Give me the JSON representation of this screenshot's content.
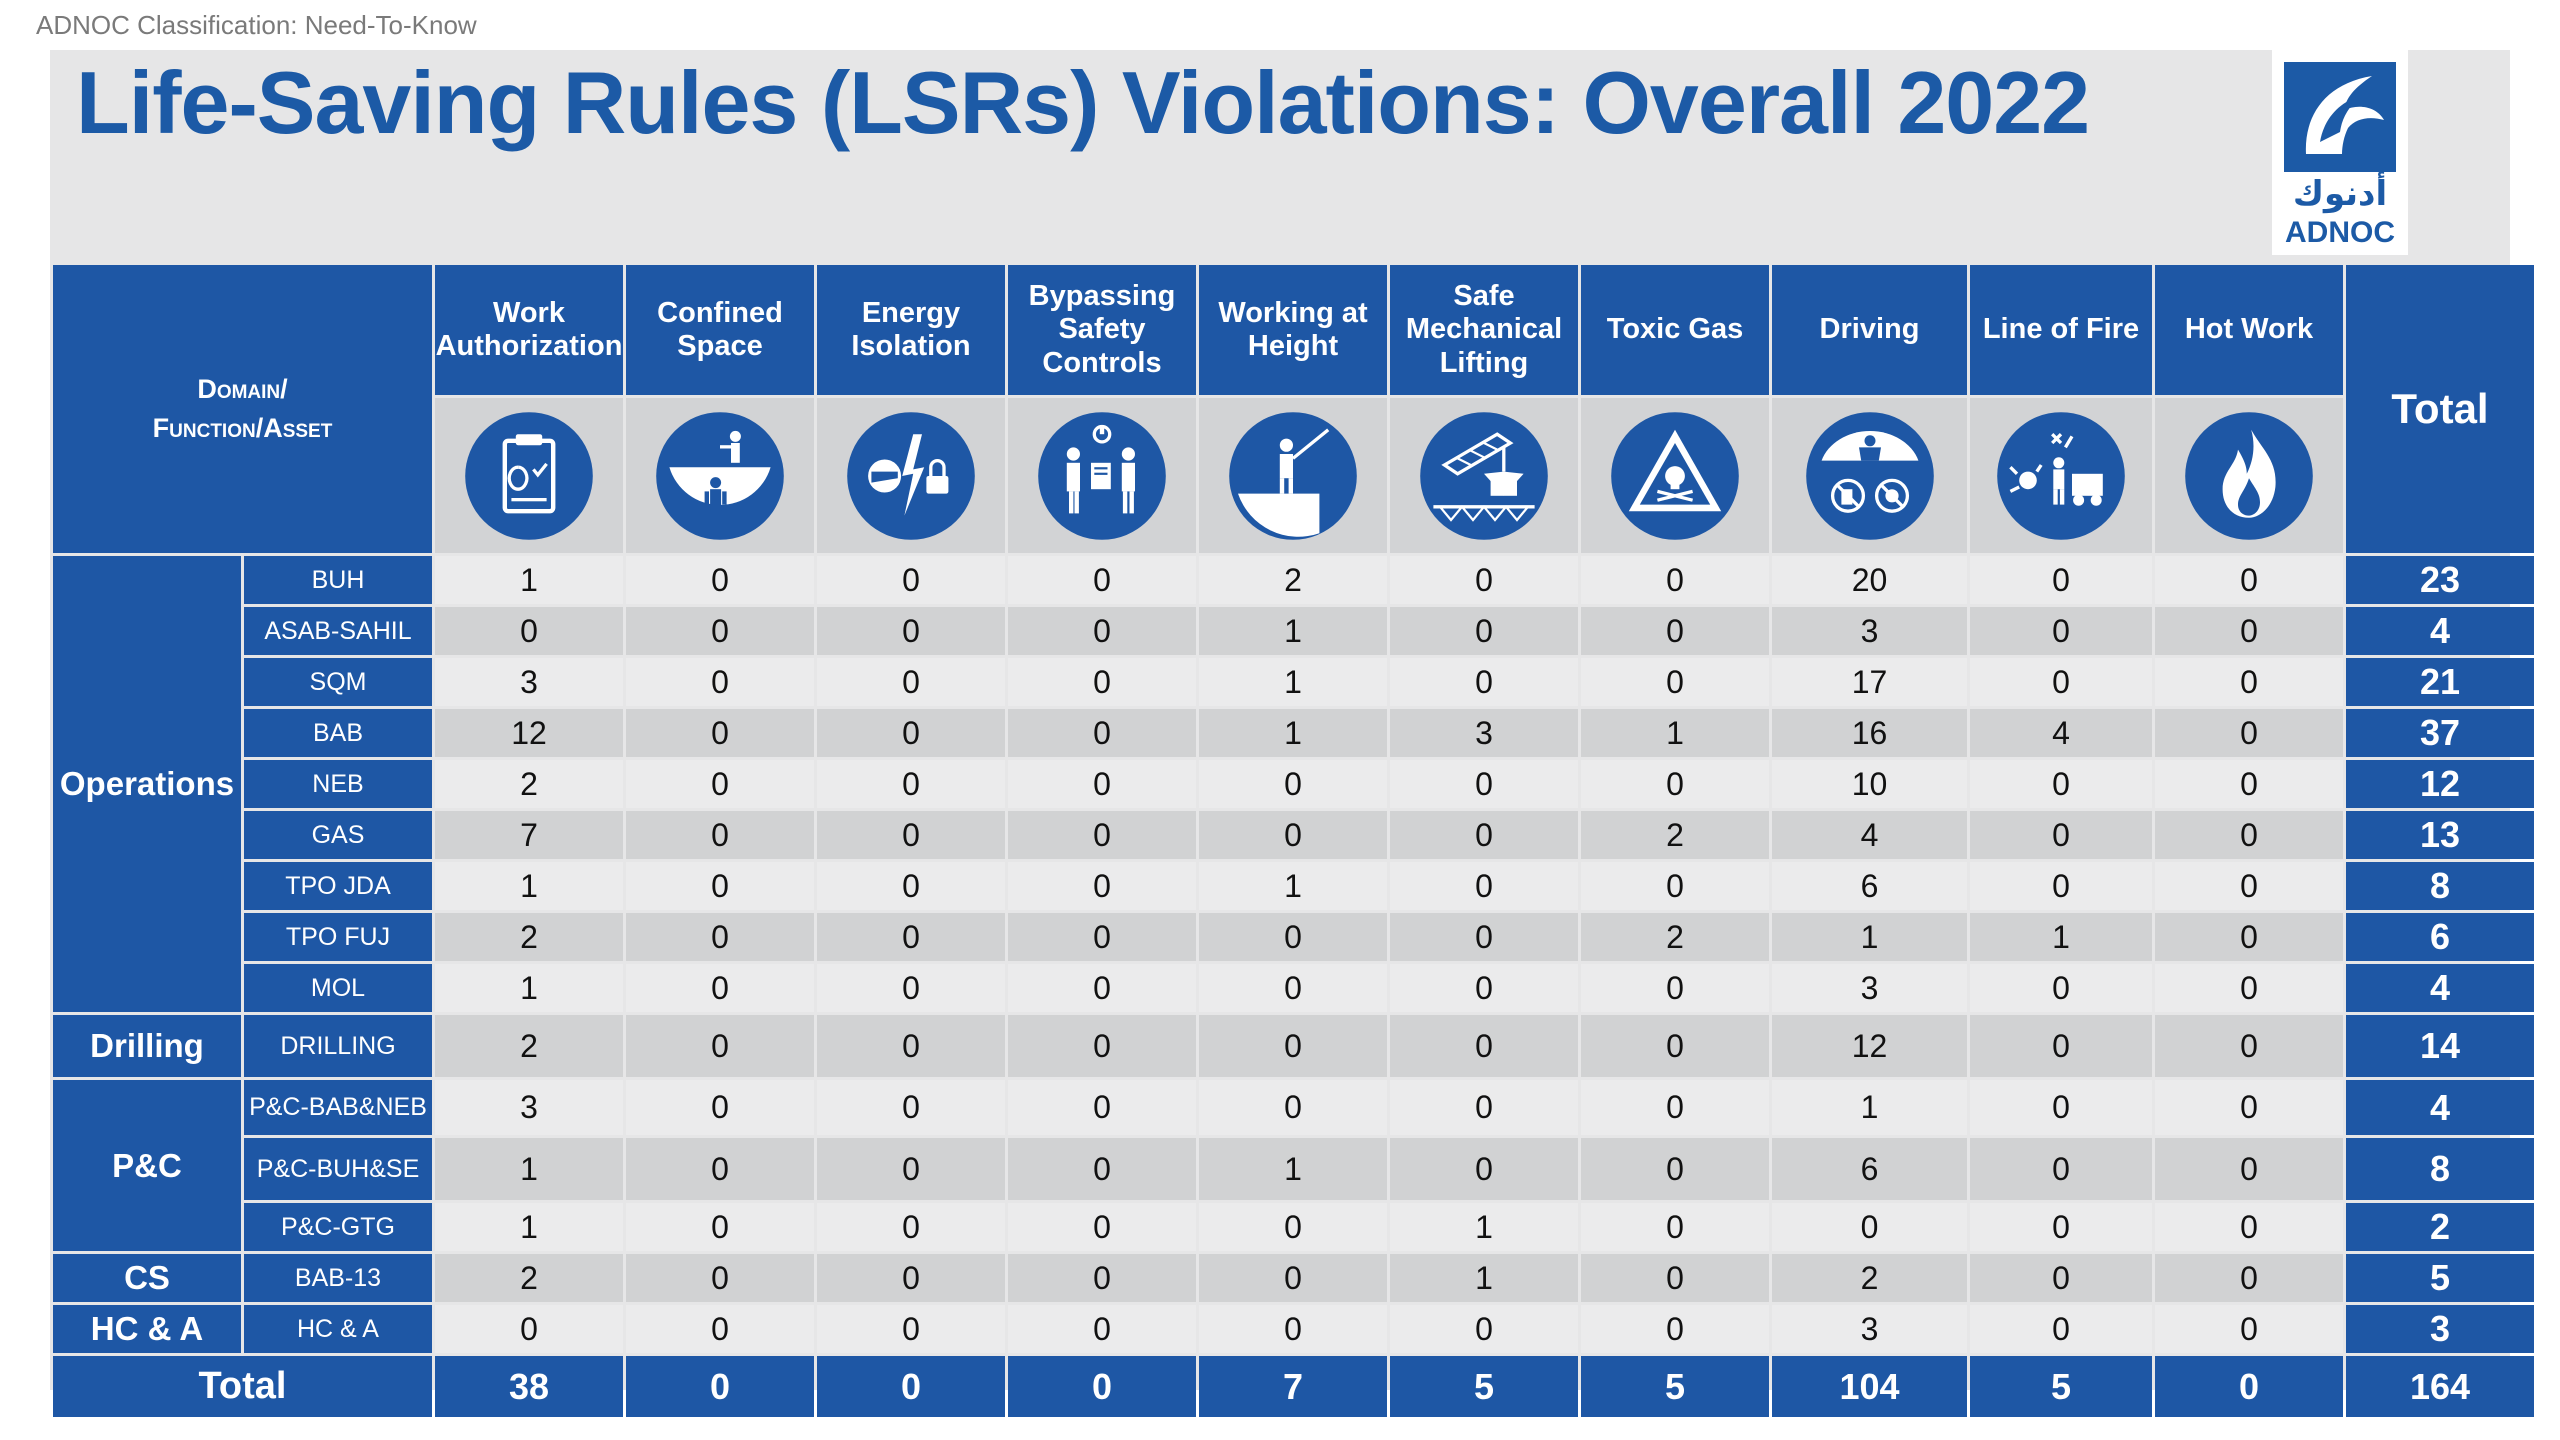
{
  "header": {
    "classification": "ADNOC Classification: Need-To-Know",
    "title": "Life-Saving Rules (LSRs) Violations: Overall 2022"
  },
  "logo": {
    "arabic": "أدنوك",
    "name": "ADNOC",
    "brand_color": "#1c5aa6"
  },
  "colors": {
    "header_blue": "#1e57a5",
    "row_light": "#ebebec",
    "row_dark": "#d1d2d3",
    "panel_bg": "#e6e6e7"
  },
  "table": {
    "domain_header": [
      "Domain/",
      "Function/Asset"
    ],
    "total_header": "Total",
    "columns": [
      {
        "label": "Work Authorization",
        "icon": "permit-icon"
      },
      {
        "label": "Confined Space",
        "icon": "confined-space-icon"
      },
      {
        "label": "Energy Isolation",
        "icon": "energy-isolation-icon"
      },
      {
        "label": "Bypassing Safety Controls",
        "icon": "bypassing-controls-icon"
      },
      {
        "label": "Working at Height",
        "icon": "working-at-height-icon"
      },
      {
        "label": "Safe Mechanical Lifting",
        "icon": "lifting-icon"
      },
      {
        "label": "Toxic Gas",
        "icon": "toxic-gas-icon"
      },
      {
        "label": "Driving",
        "icon": "driving-icon"
      },
      {
        "label": "Line of Fire",
        "icon": "line-of-fire-icon"
      },
      {
        "label": "Hot Work",
        "icon": "hot-work-icon"
      }
    ],
    "groups": [
      {
        "name": "Operations",
        "rows": [
          {
            "asset": "BUH",
            "values": [
              "1",
              "0",
              "0",
              "0",
              "2",
              "0",
              "0",
              "20",
              "0",
              "0"
            ],
            "total": "23"
          },
          {
            "asset": "ASAB-SAHIL",
            "values": [
              "0",
              "0",
              "0",
              "0",
              "1",
              "0",
              "0",
              "3",
              "0",
              "0"
            ],
            "total": "4"
          },
          {
            "asset": "SQM",
            "values": [
              "3",
              "0",
              "0",
              "0",
              "1",
              "0",
              "0",
              "17",
              "0",
              "0"
            ],
            "total": "21"
          },
          {
            "asset": "BAB",
            "values": [
              "12",
              "0",
              "0",
              "0",
              "1",
              "3",
              "1",
              "16",
              "4",
              "0"
            ],
            "total": "37"
          },
          {
            "asset": "NEB",
            "values": [
              "2",
              "0",
              "0",
              "0",
              "0",
              "0",
              "0",
              "10",
              "0",
              "0"
            ],
            "total": "12"
          },
          {
            "asset": "GAS",
            "values": [
              "7",
              "0",
              "0",
              "0",
              "0",
              "0",
              "2",
              "4",
              "0",
              "0"
            ],
            "total": "13"
          },
          {
            "asset": "TPO JDA",
            "values": [
              "1",
              "0",
              "0",
              "0",
              "1",
              "0",
              "0",
              "6",
              "0",
              "0"
            ],
            "total": "8"
          },
          {
            "asset": "TPO FUJ",
            "values": [
              "2",
              "0",
              "0",
              "0",
              "0",
              "0",
              "2",
              "1",
              "1",
              "0"
            ],
            "total": "6"
          },
          {
            "asset": "MOL",
            "values": [
              "1",
              "0",
              "0",
              "0",
              "0",
              "0",
              "0",
              "3",
              "0",
              "0"
            ],
            "total": "4"
          }
        ]
      },
      {
        "name": "Drilling",
        "rows": [
          {
            "asset": "DRILLING",
            "values": [
              "2",
              "0",
              "0",
              "0",
              "0",
              "0",
              "0",
              "12",
              "0",
              "0"
            ],
            "total": "14"
          }
        ]
      },
      {
        "name": "P&C",
        "rows": [
          {
            "asset": "P&C-BAB&NEB",
            "values": [
              "3",
              "0",
              "0",
              "0",
              "0",
              "0",
              "0",
              "1",
              "0",
              "0"
            ],
            "total": "4"
          },
          {
            "asset": "P&C-BUH&SE",
            "values": [
              "1",
              "0",
              "0",
              "0",
              "1",
              "0",
              "0",
              "6",
              "0",
              "0"
            ],
            "total": "8"
          },
          {
            "asset": "P&C-GTG",
            "values": [
              "1",
              "0",
              "0",
              "0",
              "0",
              "1",
              "0",
              "0",
              "0",
              "0"
            ],
            "total": "2"
          }
        ]
      },
      {
        "name": "CS",
        "rows": [
          {
            "asset": "BAB-13",
            "values": [
              "2",
              "0",
              "0",
              "0",
              "0",
              "1",
              "0",
              "2",
              "0",
              "0"
            ],
            "total": "5"
          }
        ]
      },
      {
        "name": "HC & A",
        "rows": [
          {
            "asset": "HC & A",
            "values": [
              "0",
              "0",
              "0",
              "0",
              "0",
              "0",
              "0",
              "3",
              "0",
              "0"
            ],
            "total": "3"
          }
        ]
      }
    ],
    "footer": {
      "label": "Total",
      "values": [
        "38",
        "0",
        "0",
        "0",
        "7",
        "5",
        "5",
        "104",
        "5",
        "0"
      ],
      "grand_total": "164"
    }
  }
}
